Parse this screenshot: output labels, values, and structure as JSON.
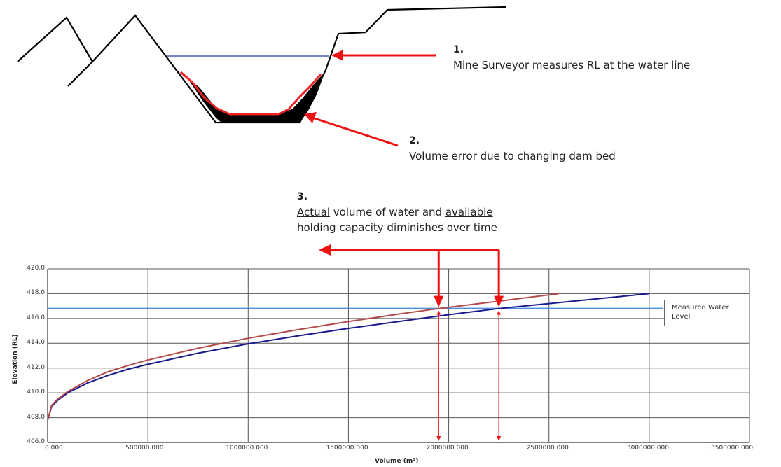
{
  "annotations": {
    "note1": {
      "number": "1.",
      "text": "Mine Surveyor measures RL at the water line"
    },
    "note2": {
      "number": "2.",
      "text": "Volume error due to changing dam bed"
    },
    "note3": {
      "number": "3.",
      "line1_part1": "Actual",
      "line1_part2": " volume of water and ",
      "line1_part3": "available",
      "line2": "holding capacity diminishes over time"
    }
  },
  "colors": {
    "section_line": "#000000",
    "water_line": "#2233aa",
    "sediment_outline": "#ee2222",
    "arrow": "#ee1111",
    "original_curve": "#1a1a8c",
    "current_curve": "#b54a4a",
    "measured_level": "#4a8fe0",
    "grid": "#555555"
  },
  "chart_data": {
    "type": "line",
    "xlabel": "Volume (m³)",
    "ylabel": "Elevation (RL)",
    "xlim": [
      0,
      3500000
    ],
    "ylim": [
      406,
      420
    ],
    "x_ticks": [
      "0.000",
      "500000.000",
      "1000000.000",
      "1500000.000",
      "2000000.000",
      "2500000.000",
      "3000000.000",
      "3500000.000"
    ],
    "y_ticks": [
      "406.0",
      "408.0",
      "410.0",
      "412.0",
      "414.0",
      "416.0",
      "418.0",
      "420.0"
    ],
    "measured_water_level": 416.8,
    "legend_entry": "Measured Water Level",
    "series": [
      {
        "x": [
          0,
          20000,
          50000,
          100000,
          200000,
          300000,
          400000,
          500000,
          750000,
          1000000,
          1250000,
          1500000,
          1750000,
          2000000,
          2250000,
          2500000,
          2750000,
          3000000
        ],
        "y": [
          407.8,
          408.9,
          409.4,
          410.0,
          410.8,
          411.4,
          411.9,
          412.3,
          413.2,
          413.95,
          414.6,
          415.2,
          415.75,
          416.3,
          416.8,
          417.2,
          417.6,
          418.0
        ]
      },
      {
        "x": [
          0,
          20000,
          50000,
          100000,
          200000,
          300000,
          400000,
          500000,
          750000,
          1000000,
          1250000,
          1500000,
          1750000,
          1950000,
          2200000,
          2400000,
          2550000
        ],
        "y": [
          407.8,
          409.0,
          409.5,
          410.1,
          411.0,
          411.7,
          412.2,
          412.65,
          413.6,
          414.4,
          415.1,
          415.75,
          416.35,
          416.8,
          417.3,
          417.7,
          418.0
        ]
      }
    ],
    "intersections": [
      1950000,
      2250000
    ]
  }
}
